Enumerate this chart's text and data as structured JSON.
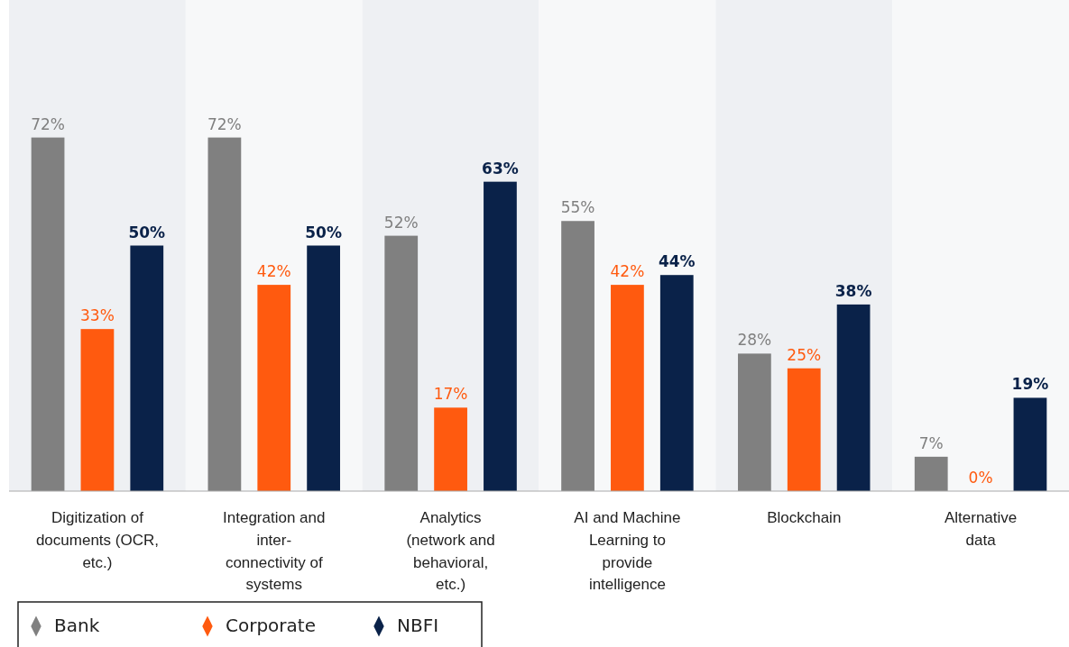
{
  "chart_data": {
    "type": "bar",
    "categories": [
      "Digitization of documents (OCR, etc.)",
      "Integration and inter-connectivity of systems",
      "Analytics (network and behavioral, etc.)",
      "AI and Machine Learning to provide intelligence",
      "Blockchain",
      "Alternative data"
    ],
    "series": [
      {
        "name": "Bank",
        "color": "#808080",
        "values": [
          72,
          72,
          52,
          55,
          28,
          7
        ],
        "value_labels": [
          "72%",
          "72%",
          "52%",
          "55%",
          "28%",
          "7%"
        ]
      },
      {
        "name": "Corporate",
        "color": "#ff5a0f",
        "values": [
          33,
          42,
          17,
          42,
          25,
          0
        ],
        "value_labels": [
          "33%",
          "42%",
          "17%",
          "42%",
          "25%",
          "0%"
        ]
      },
      {
        "name": "NBFI",
        "color": "#0a2249",
        "values": [
          50,
          50,
          63,
          44,
          38,
          19
        ],
        "value_labels": [
          "50%",
          "50%",
          "63%",
          "44%",
          "38%",
          "19%"
        ]
      }
    ],
    "tick_labels": "x",
    "legend": "bottom left",
    "marker": "diamond"
  }
}
